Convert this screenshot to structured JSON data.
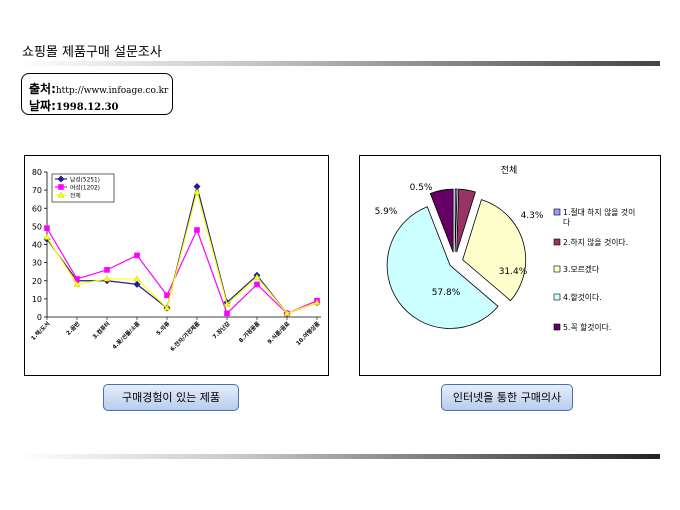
{
  "page": {
    "title": "쇼핑몰 제품구매 설문조사",
    "source_label": "출처:",
    "source_value": "http://www.infoage.co.kr",
    "date_label": "날짜:",
    "date_value": "1998.12.30"
  },
  "captions": {
    "left": "구매경험이 있는 제품",
    "right": "인터넷을 통한 구매의사"
  },
  "chart_data": [
    {
      "type": "line",
      "categories": [
        "1.책/도서",
        "2.음반",
        "3.컴퓨터",
        "4.꽃/선물/소품",
        "5.의류",
        "6.전자/가전제품",
        "7.장난감",
        "8.가정용품",
        "9.식품/음료",
        "10.여행상품"
      ],
      "series": [
        {
          "name": "남성(5251)",
          "color": "#1f1f8f",
          "marker": "diamond",
          "values": [
            43,
            20,
            20,
            18,
            5,
            72,
            8,
            23,
            2,
            8
          ]
        },
        {
          "name": "여성(1202)",
          "color": "#ff00ff",
          "marker": "square",
          "values": [
            49,
            21,
            26,
            34,
            12,
            48,
            2,
            18,
            2,
            9
          ]
        },
        {
          "name": "전체",
          "color": "#ffff00",
          "marker": "triangle",
          "values": [
            44,
            18,
            21,
            21,
            5,
            69,
            7,
            22,
            2,
            8
          ]
        }
      ],
      "ylim": [
        0,
        80
      ],
      "yticks": [
        0,
        10,
        20,
        30,
        40,
        50,
        60,
        70,
        80
      ],
      "grid": false,
      "legend": "top-left"
    },
    {
      "type": "pie",
      "title": "전체",
      "slices": [
        {
          "label": "1.절대 하지 않을 것이다",
          "value": 0.5,
          "value_label": "0.5%",
          "color": "#9999ff"
        },
        {
          "label": "2.하지 않을 것이다.",
          "value": 4.3,
          "value_label": "4.3%",
          "color": "#993366"
        },
        {
          "label": "3.모르겠다",
          "value": 31.4,
          "value_label": "31.4%",
          "color": "#ffffcc"
        },
        {
          "label": "4.할것이다.",
          "value": 57.8,
          "value_label": "57.8%",
          "color": "#ccffff"
        },
        {
          "label": "5.꼭 할것이다.",
          "value": 5.9,
          "value_label": "5.9%",
          "color": "#660066"
        }
      ],
      "legend": "right"
    }
  ]
}
